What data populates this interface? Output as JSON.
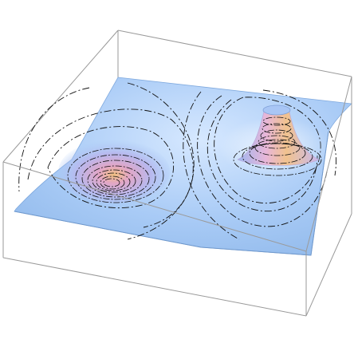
{
  "figure": {
    "kind": "3d-surface-plot",
    "features": [
      "bounding-box",
      "surface-sheet",
      "contour-lines",
      "well-depression",
      "peak-spike"
    ],
    "colors": {
      "background": "#ffffff",
      "box_edge": "#9a9a9a",
      "surface_base": "#9cc4f2",
      "surface_light": "#d6e8ff",
      "surface_shadow": "#7fa9de",
      "contour": "#101010",
      "peak_pink": "#e7b4d8",
      "peak_orange": "#f2c089",
      "peak_cap": "#a9c6f5"
    }
  }
}
